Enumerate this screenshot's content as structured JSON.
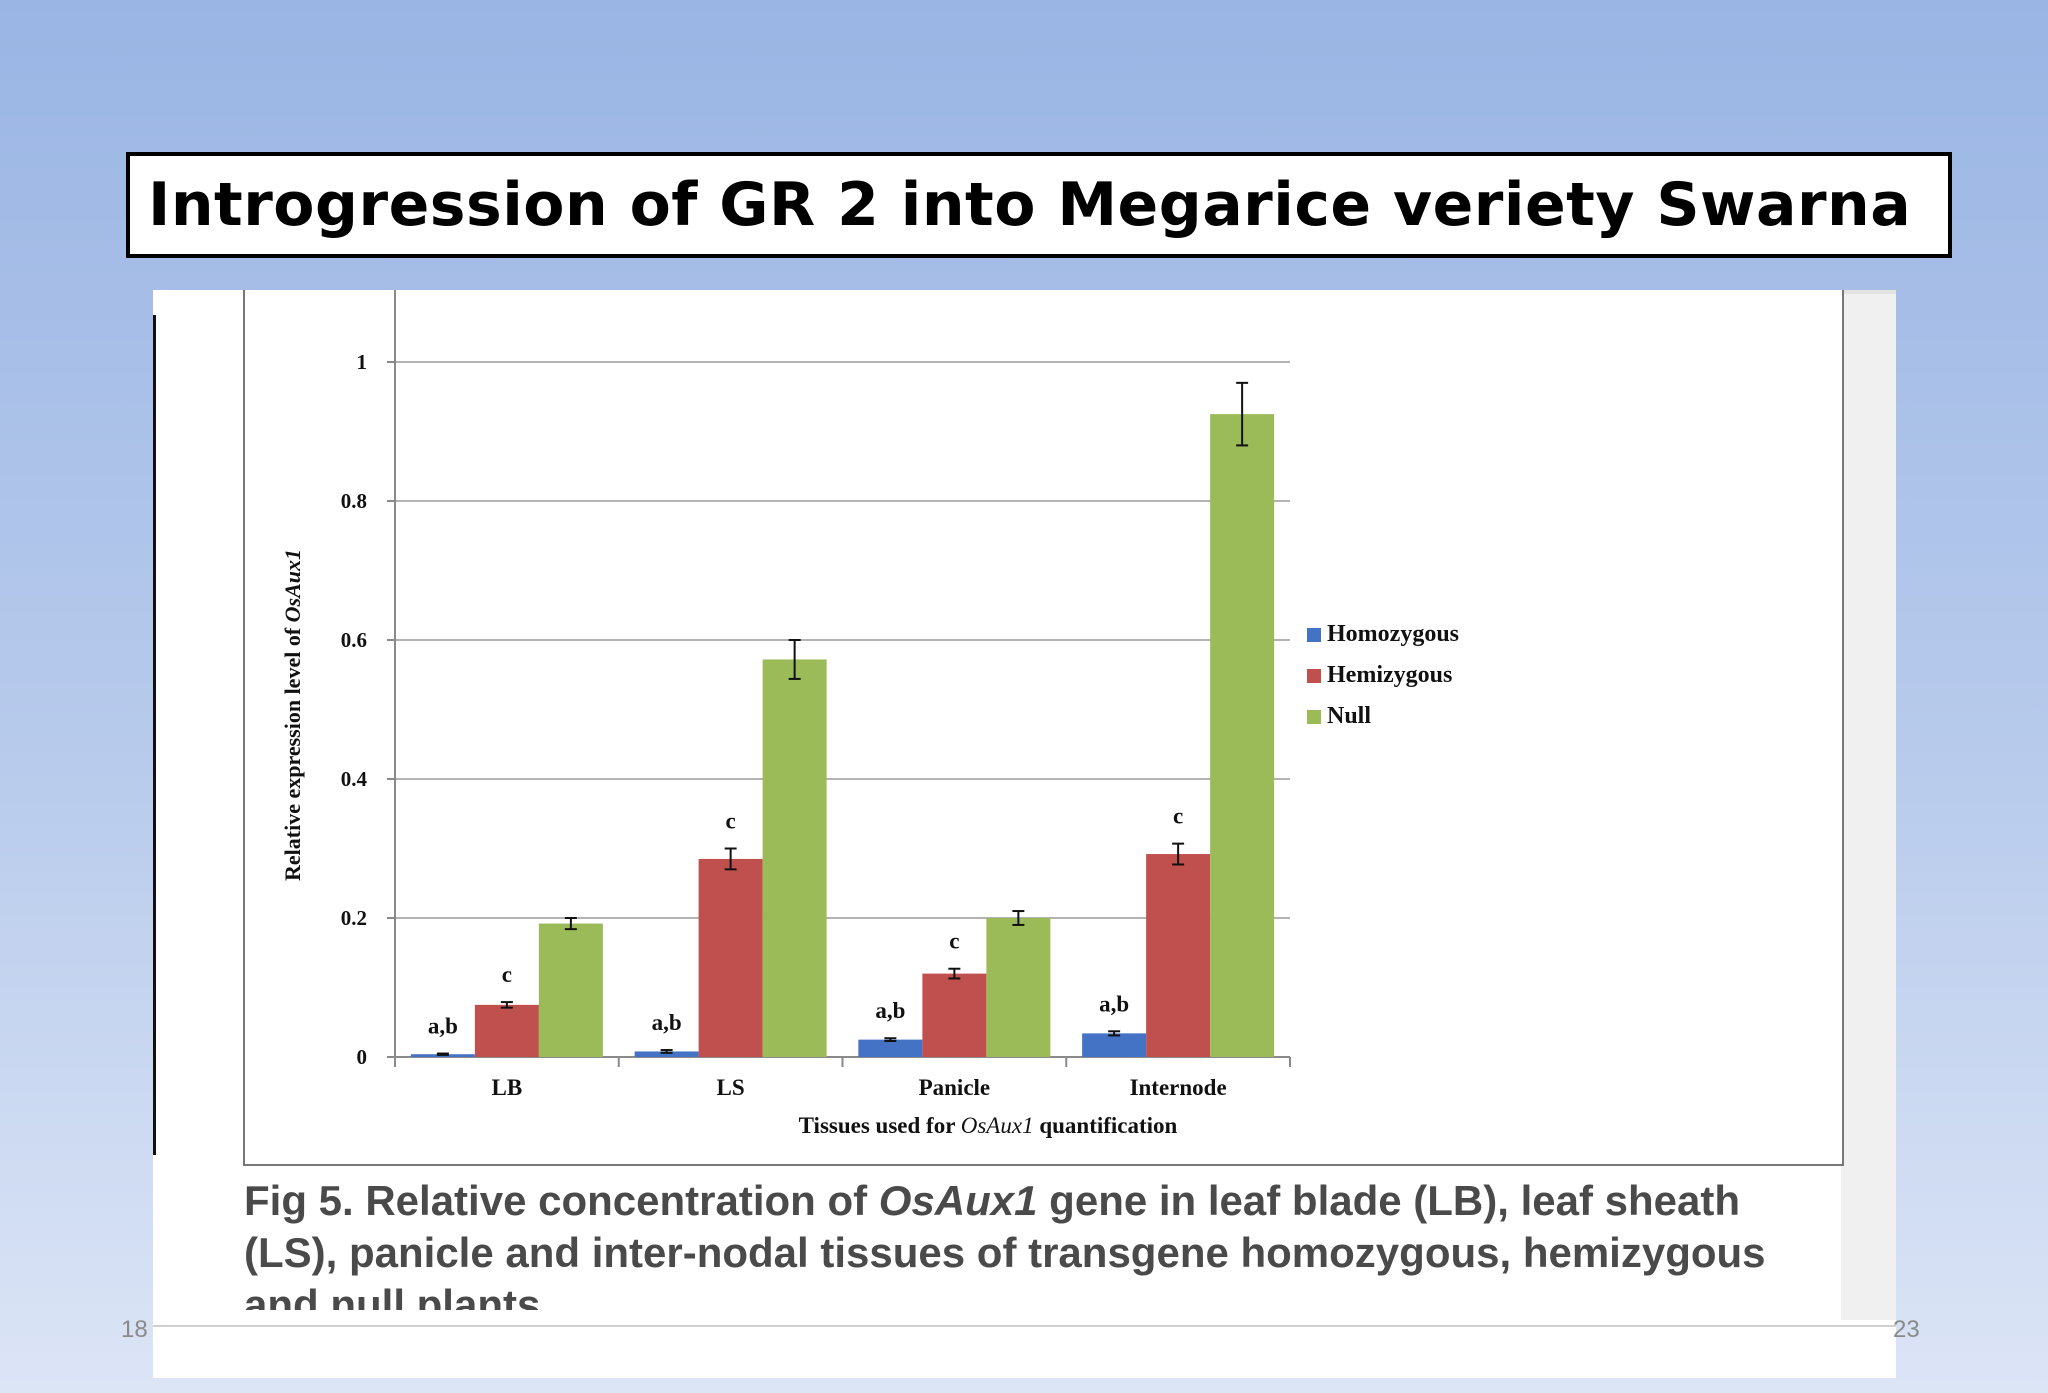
{
  "slide": {
    "title": "Introgression of GR 2 into Megarice  veriety Swarna",
    "date_fragment": "18",
    "page_number_fragment": "23"
  },
  "caption": {
    "prefix": "Fig 5. Relative concentration of ",
    "gene": "OsAux1",
    "suffix": " gene in leaf blade (LB), leaf sheath (LS), panicle and inter-nodal tissues of transgene homozygous, hemizygous and null plants."
  },
  "chart_data": {
    "type": "bar",
    "categories": [
      "LB",
      "LS",
      "Panicle",
      "Internode"
    ],
    "series": [
      {
        "name": "Homozygous",
        "color": "#4472c4",
        "values": [
          0.004,
          0.008,
          0.025,
          0.034
        ],
        "errors": [
          0.001,
          0.002,
          0.002,
          0.003
        ]
      },
      {
        "name": "Hemizygous",
        "color": "#c0504d",
        "values": [
          0.075,
          0.285,
          0.12,
          0.292
        ],
        "errors": [
          0.004,
          0.015,
          0.007,
          0.015
        ]
      },
      {
        "name": "Null",
        "color": "#9bbb59",
        "values": [
          0.192,
          0.572,
          0.2,
          0.925
        ],
        "errors": [
          0.008,
          0.028,
          0.01,
          0.045
        ]
      }
    ],
    "annotations": [
      {
        "category": "LB",
        "series": "Homozygous",
        "text": "a,b"
      },
      {
        "category": "LB",
        "series": "Hemizygous",
        "text": "c"
      },
      {
        "category": "LS",
        "series": "Homozygous",
        "text": "a,b"
      },
      {
        "category": "LS",
        "series": "Hemizygous",
        "text": "c"
      },
      {
        "category": "Panicle",
        "series": "Homozygous",
        "text": "a,b"
      },
      {
        "category": "Panicle",
        "series": "Hemizygous",
        "text": "c"
      },
      {
        "category": "Internode",
        "series": "Homozygous",
        "text": "a,b"
      },
      {
        "category": "Internode",
        "series": "Hemizygous",
        "text": "c"
      }
    ],
    "yticks": [
      "0",
      "0.2",
      "0.4",
      "0.6",
      "0.8",
      "1"
    ],
    "ylim": [
      0,
      1
    ],
    "ylabel": "Relative expression level of ",
    "ylabel_gene": "OsAux1",
    "xlabel": "Tissues used for ",
    "xlabel_gene": "OsAux1",
    "xlabel_suffix": " quantification",
    "grid": true,
    "legend_position": "right"
  }
}
